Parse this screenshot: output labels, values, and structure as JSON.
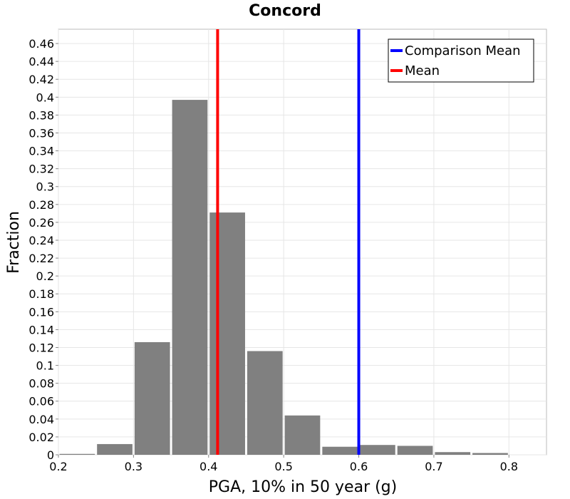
{
  "chart_data": {
    "type": "bar",
    "title": "Concord",
    "xlabel": "PGA, 10% in 50 year (g)",
    "ylabel": "Fraction",
    "xlim": [
      0.2,
      0.85
    ],
    "ylim": [
      0,
      0.476
    ],
    "grid": true,
    "legend_position": "top-right",
    "x_ticks": [
      0.2,
      0.3,
      0.4,
      0.5,
      0.6,
      0.7,
      0.8
    ],
    "x_tick_labels": [
      "0.2",
      "0.3",
      "0.4",
      "0.5",
      "0.6",
      "0.7",
      "0.8"
    ],
    "y_ticks": [
      0,
      0.02,
      0.04,
      0.06,
      0.08,
      0.1,
      0.12,
      0.14,
      0.16,
      0.18,
      0.2,
      0.22,
      0.24,
      0.26,
      0.28,
      0.3,
      0.32,
      0.34,
      0.36,
      0.38,
      0.4,
      0.42,
      0.44,
      0.46
    ],
    "y_tick_labels": [
      "0",
      "0.02",
      "0.04",
      "0.06",
      "0.08",
      "0.1",
      "0.12",
      "0.14",
      "0.16",
      "0.18",
      "0.2",
      "0.22",
      "0.24",
      "0.26",
      "0.28",
      "0.3",
      "0.32",
      "0.34",
      "0.36",
      "0.38",
      "0.4",
      "0.42",
      "0.44",
      "0.46"
    ],
    "bins": [
      {
        "x0": 0.2,
        "x1": 0.25,
        "value": 0.001
      },
      {
        "x0": 0.25,
        "x1": 0.3,
        "value": 0.012
      },
      {
        "x0": 0.3,
        "x1": 0.35,
        "value": 0.126
      },
      {
        "x0": 0.35,
        "x1": 0.4,
        "value": 0.397
      },
      {
        "x0": 0.4,
        "x1": 0.45,
        "value": 0.271
      },
      {
        "x0": 0.45,
        "x1": 0.5,
        "value": 0.116
      },
      {
        "x0": 0.5,
        "x1": 0.55,
        "value": 0.044
      },
      {
        "x0": 0.55,
        "x1": 0.6,
        "value": 0.009
      },
      {
        "x0": 0.6,
        "x1": 0.65,
        "value": 0.011
      },
      {
        "x0": 0.65,
        "x1": 0.7,
        "value": 0.01
      },
      {
        "x0": 0.7,
        "x1": 0.75,
        "value": 0.003
      },
      {
        "x0": 0.75,
        "x1": 0.8,
        "value": 0.002
      }
    ],
    "bar_color": "#808080",
    "vlines": [
      {
        "name": "Comparison Mean",
        "x": 0.6,
        "color": "#0000ff"
      },
      {
        "name": "Mean",
        "x": 0.412,
        "color": "#ff0000"
      }
    ]
  }
}
